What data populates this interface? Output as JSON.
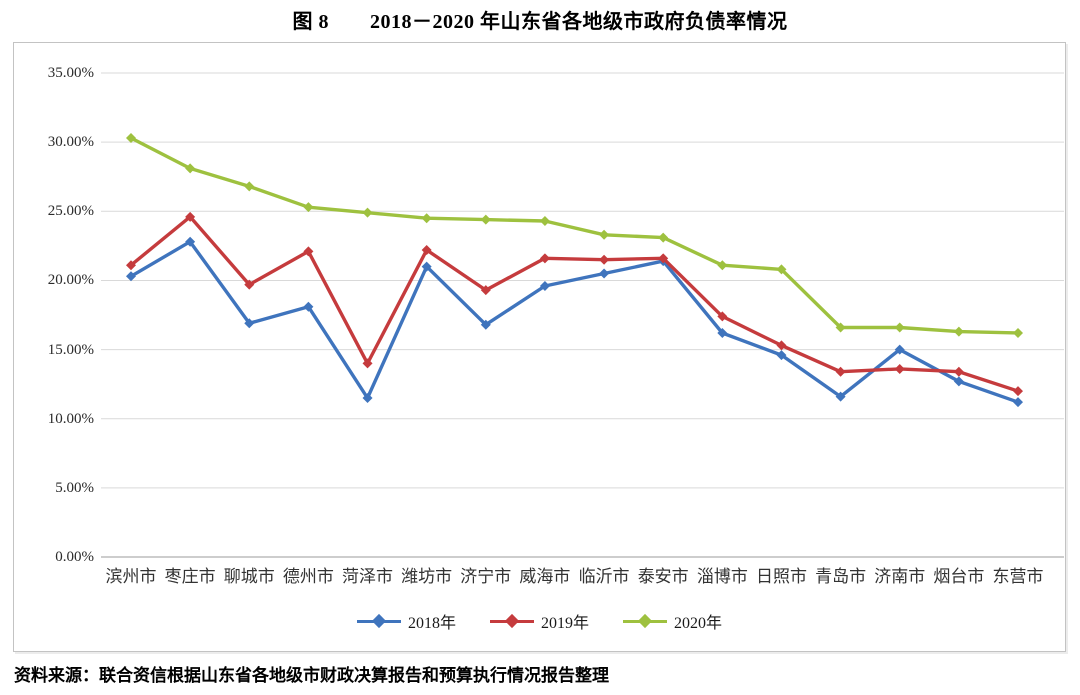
{
  "title": "图 8　　2018－2020 年山东省各地级市政府负债率情况",
  "source": "资料来源：联合资信根据山东省各地级市财政决算报告和预算执行情况报告整理",
  "colors": {
    "grid": "#d9d9d9",
    "axis": "#9b9b9b",
    "frame_border": "#c3c3c3"
  },
  "chart_data": {
    "type": "line",
    "title": "图 8　　2018－2020 年山东省各地级市政府负债率情况",
    "categories": [
      "滨州市",
      "枣庄市",
      "聊城市",
      "德州市",
      "菏泽市",
      "潍坊市",
      "济宁市",
      "威海市",
      "临沂市",
      "泰安市",
      "淄博市",
      "日照市",
      "青岛市",
      "济南市",
      "烟台市",
      "东营市"
    ],
    "series": [
      {
        "name": "2018年",
        "color": "#3f74bd",
        "values": [
          20.3,
          22.8,
          16.9,
          18.1,
          11.5,
          21.0,
          16.8,
          19.6,
          20.5,
          21.4,
          16.2,
          14.6,
          11.6,
          15.0,
          12.7,
          11.2
        ]
      },
      {
        "name": "2019年",
        "color": "#c53b3d",
        "values": [
          21.1,
          24.6,
          19.7,
          22.1,
          14.0,
          22.2,
          19.3,
          21.6,
          21.5,
          21.6,
          17.4,
          15.3,
          13.4,
          13.6,
          13.4,
          12.0
        ]
      },
      {
        "name": "2020年",
        "color": "#9ec13f",
        "values": [
          30.3,
          28.1,
          26.8,
          25.3,
          24.9,
          24.5,
          24.4,
          24.3,
          23.3,
          23.1,
          21.1,
          20.8,
          16.6,
          16.6,
          16.3,
          16.2
        ]
      }
    ],
    "ylim": [
      0,
      35
    ],
    "y_ticks": [
      "35.00%",
      "30.00%",
      "25.00%",
      "20.00%",
      "15.00%",
      "10.00%",
      "5.00%",
      "0.00%"
    ],
    "grid": true,
    "marker": "diamond",
    "legend_position": "bottom",
    "xlabel": "",
    "ylabel": ""
  }
}
